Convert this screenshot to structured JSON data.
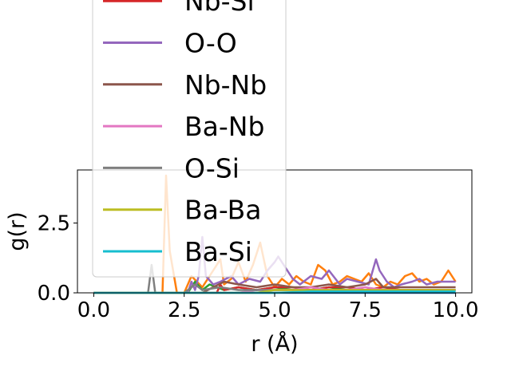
{
  "chart_data": {
    "type": "line",
    "xlabel": "r (Å)",
    "ylabel": "g(r)",
    "xlim": [
      -0.45,
      10.45
    ],
    "ylim": [
      0,
      4.4
    ],
    "x_ticks": [
      "0.0",
      "2.5",
      "5.0",
      "7.5",
      "10.0"
    ],
    "y_ticks": [
      "0.0",
      "2.5"
    ],
    "grid": false,
    "legend_placement": "upper-left, overflowing above the plot",
    "series": [
      {
        "name": "",
        "color": "#1f77b4",
        "x": [
          0,
          10
        ],
        "y": [
          0,
          0
        ]
      },
      {
        "name": "",
        "color": "#ff7f0e",
        "x": [
          0,
          1.9,
          2.0,
          2.1,
          2.3,
          2.5,
          2.7,
          3.0,
          3.3,
          3.5,
          3.6,
          3.8,
          4.0,
          4.2,
          4.4,
          4.6,
          4.8,
          5.0,
          5.2,
          5.4,
          5.6,
          5.8,
          6.0,
          6.2,
          6.4,
          6.6,
          6.8,
          7.0,
          7.2,
          7.4,
          7.6,
          7.8,
          8.0,
          8.2,
          8.4,
          8.6,
          8.8,
          9.0,
          9.2,
          9.4,
          9.6,
          9.8,
          10.0
        ],
        "y": [
          0,
          0,
          4.2,
          1.5,
          0,
          0,
          0.6,
          0.2,
          0.8,
          1.2,
          0.3,
          0.5,
          1.1,
          0.4,
          1.0,
          1.8,
          0.6,
          0.2,
          0.5,
          0.3,
          0.6,
          0.4,
          0.3,
          1.0,
          0.8,
          0.3,
          0.4,
          0.6,
          0.5,
          0.4,
          0.7,
          0.3,
          0.2,
          0.4,
          0.3,
          0.6,
          0.7,
          0.4,
          0.5,
          0.3,
          0.4,
          0.8,
          0.4
        ]
      },
      {
        "name": "",
        "color": "#2ca02c",
        "x": [
          0,
          2.6,
          2.8,
          3.0,
          3.2,
          3.6,
          4.0,
          4.5,
          5.0,
          5.5,
          6.0,
          6.5,
          7.0,
          7.5,
          8.0,
          8.5,
          9.0,
          9.5,
          10.0
        ],
        "y": [
          0,
          0,
          0.4,
          0.1,
          0.3,
          0.1,
          0.2,
          0.1,
          0.2,
          0.1,
          0.1,
          0.2,
          0.1,
          0.1,
          0.1,
          0.1,
          0.1,
          0.1,
          0.1
        ]
      },
      {
        "name": "Nb-Si",
        "color": "#d62728",
        "x": [
          0,
          3.4,
          3.5,
          3.6,
          4.0,
          4.5,
          5.0,
          5.5,
          6.0,
          6.5,
          7.0,
          7.5,
          8.0,
          8.5,
          9.0,
          9.5,
          10.0
        ],
        "y": [
          0,
          0,
          0.3,
          0.1,
          0.2,
          0.1,
          0.2,
          0.2,
          0.1,
          0.2,
          0.2,
          0.1,
          0.2,
          0.1,
          0.1,
          0.1,
          0.1
        ]
      },
      {
        "name": "O-O",
        "color": "#9467bd",
        "x": [
          0,
          2.6,
          2.7,
          2.8,
          2.9,
          3.0,
          3.1,
          3.3,
          3.5,
          3.8,
          4.0,
          4.3,
          4.6,
          4.8,
          5.0,
          5.1,
          5.3,
          5.5,
          5.7,
          6.0,
          6.3,
          6.5,
          6.8,
          7.0,
          7.3,
          7.6,
          7.8,
          7.9,
          8.1,
          8.3,
          8.5,
          8.8,
          9.0,
          9.2,
          9.5,
          9.8,
          10.0
        ],
        "y": [
          0,
          0,
          0.4,
          0.1,
          0.6,
          2.0,
          0.6,
          0.3,
          0.4,
          0.6,
          0.3,
          0.5,
          0.4,
          0.8,
          1.1,
          1.3,
          0.9,
          0.5,
          0.3,
          0.6,
          0.5,
          0.8,
          0.3,
          0.5,
          0.4,
          0.3,
          1.2,
          0.8,
          0.4,
          0.2,
          0.3,
          0.4,
          0.5,
          0.3,
          0.4,
          0.4,
          0.4
        ]
      },
      {
        "name": "Nb-Nb",
        "color": "#8c564b",
        "x": [
          0,
          3.0,
          3.3,
          3.6,
          4.0,
          4.5,
          5.0,
          5.5,
          6.0,
          6.5,
          7.0,
          7.5,
          7.8,
          8.0,
          8.5,
          9.0,
          9.5,
          10.0
        ],
        "y": [
          0,
          0,
          0.2,
          0.4,
          0.3,
          0.2,
          0.3,
          0.2,
          0.2,
          0.3,
          0.2,
          0.3,
          0.5,
          0.2,
          0.2,
          0.2,
          0.2,
          0.2
        ]
      },
      {
        "name": "Ba-Nb",
        "color": "#e377c2",
        "x": [
          0,
          4.0,
          4.5,
          5.0,
          5.5,
          6.0,
          6.5,
          7.0,
          7.5,
          8.0,
          8.5,
          9.0,
          9.5,
          10.0
        ],
        "y": [
          0,
          0,
          0.1,
          0.1,
          0.1,
          0.2,
          0.1,
          0.1,
          0.2,
          0.1,
          0.1,
          0.1,
          0.1,
          0.1
        ]
      },
      {
        "name": "O-Si",
        "color": "#7f7f7f",
        "x": [
          0,
          1.5,
          1.6,
          1.7,
          2.5,
          2.8,
          3.0,
          3.5,
          4.0,
          5.0,
          6.0,
          7.0,
          8.0,
          9.0,
          10.0
        ],
        "y": [
          0,
          0,
          1.0,
          0,
          0,
          0.3,
          0.1,
          0.2,
          0.1,
          0.1,
          0.1,
          0.1,
          0.1,
          0.1,
          0.1
        ]
      },
      {
        "name": "Ba-Ba",
        "color": "#bcbd22",
        "x": [
          0,
          4.5,
          5.0,
          5.5,
          6.0,
          6.5,
          7.0,
          7.5,
          8.0,
          8.5,
          9.0,
          9.5,
          10.0
        ],
        "y": [
          0,
          0,
          0.1,
          0.1,
          0.1,
          0.1,
          0.1,
          0.1,
          0.1,
          0.1,
          0.1,
          0.1,
          0.1
        ]
      },
      {
        "name": "Ba-Si",
        "color": "#17becf",
        "x": [
          0,
          5.0,
          6.0,
          7.0,
          8.0,
          9.0,
          10.0
        ],
        "y": [
          0,
          0,
          0.05,
          0.05,
          0.05,
          0.05,
          0.05
        ]
      }
    ]
  }
}
